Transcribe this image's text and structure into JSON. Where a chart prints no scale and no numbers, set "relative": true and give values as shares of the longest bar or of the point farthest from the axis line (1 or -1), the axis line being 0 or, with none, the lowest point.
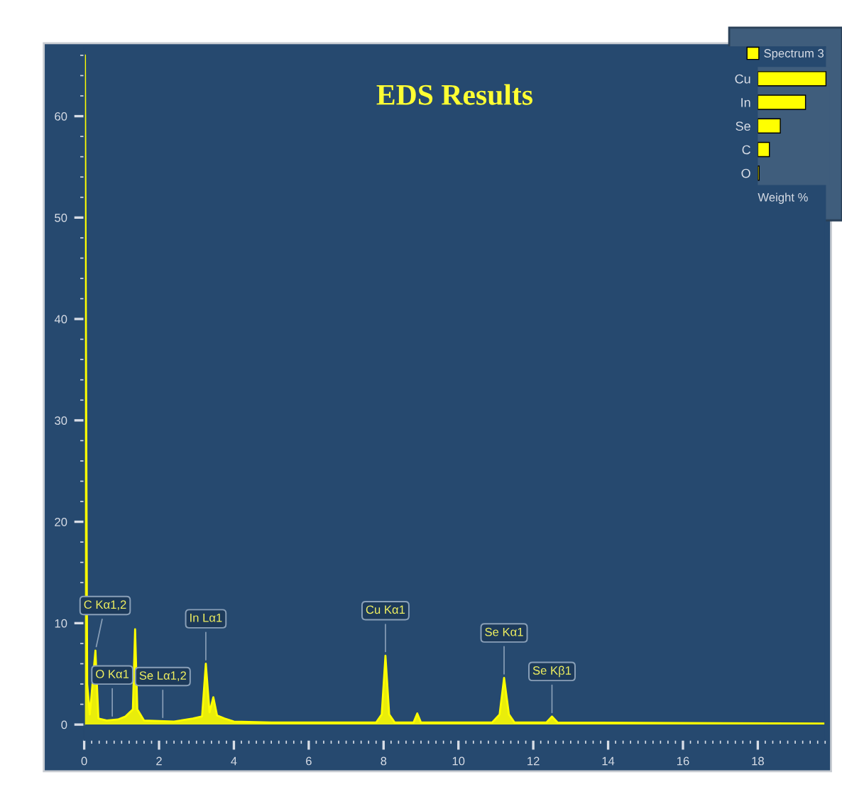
{
  "chart_data": [
    {
      "type": "area",
      "title": "EDS Results",
      "x": [
        0,
        0.02,
        0.08,
        0.15,
        0.3,
        0.38,
        0.6,
        0.9,
        1.1,
        1.3,
        1.36,
        1.42,
        1.6,
        2.4,
        2.9,
        3.15,
        3.25,
        3.35,
        3.45,
        3.55,
        3.75,
        4.0,
        5,
        7.8,
        7.95,
        8.05,
        8.15,
        8.3,
        8.8,
        8.9,
        9.0,
        10.9,
        11.1,
        11.22,
        11.35,
        11.5,
        12.35,
        12.5,
        12.65,
        19.8
      ],
      "series": [
        {
          "color": "#ffff00",
          "values": [
            0,
            66,
            4,
            1,
            7.3,
            0.6,
            0.4,
            0.5,
            0.8,
            1.5,
            9.4,
            1.5,
            0.4,
            0.3,
            0.6,
            0.8,
            6.0,
            1.2,
            2.7,
            0.9,
            0.6,
            0.3,
            0.2,
            0.2,
            1,
            6.8,
            1,
            0.2,
            0.2,
            1.1,
            0.2,
            0.2,
            1,
            4.6,
            1,
            0.2,
            0.2,
            0.8,
            0.2,
            0.1
          ]
        }
      ],
      "xlim": [
        0,
        19.8
      ],
      "ylim": [
        -1.5,
        66.8
      ],
      "xticks": [
        0,
        2,
        4,
        6,
        8,
        10,
        12,
        14,
        16,
        18
      ],
      "yticks": [
        0,
        10,
        20,
        30,
        40,
        50,
        60
      ],
      "grid": false,
      "annotations": [
        {
          "text": "C Kα1,2",
          "x": 0.3,
          "y": 7.3
        },
        {
          "text": "O Kα1",
          "x": 0.75,
          "y": 0.45
        },
        {
          "text": "Se Lα1,2",
          "x": 2.1,
          "y": 0.3
        },
        {
          "text": "In Lα1",
          "x": 3.25,
          "y": 6.0
        },
        {
          "text": "Cu Kα1",
          "x": 8.05,
          "y": 6.8
        },
        {
          "text": "Se Kα1",
          "x": 11.22,
          "y": 4.6
        },
        {
          "text": "Se Kβ1",
          "x": 12.5,
          "y": 0.8
        }
      ]
    },
    {
      "type": "bar",
      "orientation": "horizontal",
      "relative": true,
      "categories": [
        "Cu",
        "In",
        "Se",
        "C",
        "O"
      ],
      "series": [
        {
          "name": "Spectrum 3",
          "color": "#ffff00",
          "values": [
            1,
            0.7,
            0.33,
            0.17,
            0.02
          ]
        }
      ],
      "xlabel": "Weight %",
      "legend": "top",
      "tick_labels": "y"
    }
  ]
}
